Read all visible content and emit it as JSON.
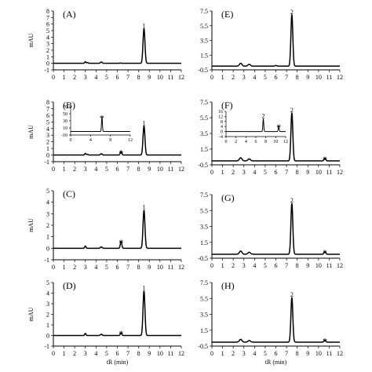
{
  "chart_data": [
    {
      "type": "line",
      "label": "(A)",
      "ylabel": "mAU",
      "xlabel": "",
      "xlim": [
        0,
        12
      ],
      "ylim": [
        -1,
        8
      ],
      "xticks": [
        0,
        1,
        2,
        3,
        4,
        5,
        6,
        7,
        8,
        9,
        10,
        11,
        12
      ],
      "yticks": [
        -1,
        0,
        1,
        2,
        3,
        4,
        5,
        6,
        7,
        8
      ],
      "baseline": 0.0,
      "peaks": [
        {
          "x": 3.0,
          "height": 0.25,
          "width": 0.06
        },
        {
          "x": 3.2,
          "height": 0.12,
          "width": 0.06
        },
        {
          "x": 4.5,
          "height": 0.2,
          "width": 0.08
        },
        {
          "x": 6.3,
          "height": 0.05,
          "width": 0.06
        },
        {
          "x": 8.5,
          "height": 5.3,
          "width": 0.09
        }
      ],
      "annotations": [
        {
          "text": "1",
          "x": 8.5,
          "y": 5.4
        }
      ]
    },
    {
      "type": "line",
      "label": "(B)",
      "ylabel": "mAU",
      "xlabel": "",
      "xlim": [
        0,
        12
      ],
      "ylim": [
        -1,
        8
      ],
      "xticks": [
        0,
        1,
        2,
        3,
        4,
        5,
        6,
        7,
        8,
        9,
        10,
        11,
        12
      ],
      "yticks": [
        -1,
        0,
        1,
        2,
        3,
        4,
        5,
        6,
        7,
        8
      ],
      "baseline": 0.0,
      "peaks": [
        {
          "x": 3.0,
          "height": 0.25,
          "width": 0.06
        },
        {
          "x": 3.2,
          "height": 0.12,
          "width": 0.06
        },
        {
          "x": 4.5,
          "height": 0.2,
          "width": 0.08
        },
        {
          "x": 6.35,
          "height": 0.55,
          "width": 0.07
        },
        {
          "x": 8.5,
          "height": 4.4,
          "width": 0.09
        }
      ],
      "annotations": [
        {
          "text": "1",
          "x": 8.5,
          "y": 4.5
        },
        {
          "text": "*",
          "x": 6.35,
          "y": 0.65
        }
      ],
      "inset": {
        "xlim": [
          0,
          12
        ],
        "ylim": [
          -10,
          70
        ],
        "xticks": [
          0,
          4,
          8,
          12
        ],
        "yticks": [
          -10,
          10,
          30,
          50,
          70
        ],
        "baseline": 0.0,
        "peaks": [
          {
            "x": 6.3,
            "height": 41,
            "width": 0.09
          }
        ],
        "annotations": [
          {
            "text": "*",
            "x": 6.3,
            "y": 44
          }
        ]
      }
    },
    {
      "type": "line",
      "label": "(C)",
      "ylabel": "mAU",
      "xlabel": "",
      "xlim": [
        0,
        12
      ],
      "ylim": [
        -1,
        5
      ],
      "xticks": [
        0,
        1,
        2,
        3,
        4,
        5,
        6,
        7,
        8,
        9,
        10,
        11,
        12
      ],
      "yticks": [
        -1,
        0,
        1,
        2,
        3,
        4,
        5
      ],
      "baseline": 0.0,
      "peaks": [
        {
          "x": 3.0,
          "height": 0.2,
          "width": 0.06
        },
        {
          "x": 4.5,
          "height": 0.12,
          "width": 0.08
        },
        {
          "x": 6.35,
          "height": 0.6,
          "width": 0.07
        },
        {
          "x": 8.5,
          "height": 3.3,
          "width": 0.09
        }
      ],
      "annotations": [
        {
          "text": "1",
          "x": 8.5,
          "y": 3.4
        },
        {
          "text": "*",
          "x": 6.35,
          "y": 0.7
        }
      ]
    },
    {
      "type": "line",
      "label": "(D)",
      "ylabel": "mAU",
      "xlabel": "tR (min)",
      "xlim": [
        0,
        12
      ],
      "ylim": [
        -1,
        5
      ],
      "xticks": [
        0,
        1,
        2,
        3,
        4,
        5,
        6,
        7,
        8,
        9,
        10,
        11,
        12
      ],
      "yticks": [
        -1,
        0,
        1,
        2,
        3,
        4,
        5
      ],
      "baseline": 0.0,
      "peaks": [
        {
          "x": 3.0,
          "height": 0.2,
          "width": 0.06
        },
        {
          "x": 4.5,
          "height": 0.12,
          "width": 0.08
        },
        {
          "x": 6.35,
          "height": 0.25,
          "width": 0.07
        },
        {
          "x": 8.5,
          "height": 4.2,
          "width": 0.09
        }
      ],
      "annotations": [
        {
          "text": "1",
          "x": 8.5,
          "y": 4.3
        },
        {
          "text": "*",
          "x": 6.35,
          "y": 0.4
        }
      ]
    },
    {
      "type": "line",
      "label": "(E)",
      "ylabel": "",
      "xlabel": "",
      "xlim": [
        0,
        12
      ],
      "ylim": [
        -0.5,
        7.5
      ],
      "xticks": [
        0,
        1,
        2,
        3,
        4,
        5,
        6,
        7,
        8,
        9,
        10,
        11,
        12
      ],
      "yticks": [
        -0.5,
        1.5,
        3.5,
        5.5,
        7.5
      ],
      "baseline": 0.0,
      "peaks": [
        {
          "x": 2.7,
          "height": 0.4,
          "width": 0.12
        },
        {
          "x": 3.5,
          "height": 0.25,
          "width": 0.12
        },
        {
          "x": 6.0,
          "height": 0.1,
          "width": 0.08
        },
        {
          "x": 7.5,
          "height": 7.0,
          "width": 0.09
        }
      ],
      "annotations": [
        {
          "text": "2",
          "x": 7.5,
          "y": 7.1
        }
      ]
    },
    {
      "type": "line",
      "label": "(F)",
      "ylabel": "",
      "xlabel": "",
      "xlim": [
        0,
        12
      ],
      "ylim": [
        -0.5,
        7.5
      ],
      "xticks": [
        0,
        1,
        2,
        3,
        4,
        5,
        6,
        7,
        8,
        9,
        10,
        11,
        12
      ],
      "yticks": [
        -0.5,
        1.5,
        3.5,
        5.5,
        7.5
      ],
      "baseline": 0.0,
      "peaks": [
        {
          "x": 2.7,
          "height": 0.4,
          "width": 0.12
        },
        {
          "x": 3.5,
          "height": 0.25,
          "width": 0.12
        },
        {
          "x": 7.5,
          "height": 6.1,
          "width": 0.09
        },
        {
          "x": 10.6,
          "height": 0.35,
          "width": 0.08
        }
      ],
      "annotations": [
        {
          "text": "2",
          "x": 7.5,
          "y": 6.2
        },
        {
          "text": "*",
          "x": 10.6,
          "y": 0.5
        }
      ],
      "inset": {
        "xlim": [
          0,
          12
        ],
        "ylim": [
          -4,
          16
        ],
        "xticks": [
          0,
          2,
          4,
          6,
          8,
          10,
          12
        ],
        "yticks": [
          -4,
          0,
          4,
          8,
          12,
          16
        ],
        "baseline": 0.0,
        "peaks": [
          {
            "x": 7.5,
            "height": 10.0,
            "width": 0.09
          },
          {
            "x": 10.6,
            "height": 4.5,
            "width": 0.09
          }
        ],
        "annotations": [
          {
            "text": "2",
            "x": 7.5,
            "y": 10.8
          },
          {
            "text": "*",
            "x": 10.6,
            "y": 5.5
          }
        ]
      }
    },
    {
      "type": "line",
      "label": "(G)",
      "ylabel": "",
      "xlabel": "",
      "xlim": [
        0,
        12
      ],
      "ylim": [
        -0.5,
        7.5
      ],
      "xticks": [
        0,
        1,
        2,
        3,
        4,
        5,
        6,
        7,
        8,
        9,
        10,
        11,
        12
      ],
      "yticks": [
        -0.5,
        1.5,
        3.5,
        5.5,
        7.5
      ],
      "baseline": 0.0,
      "peaks": [
        {
          "x": 2.7,
          "height": 0.4,
          "width": 0.12
        },
        {
          "x": 3.5,
          "height": 0.25,
          "width": 0.12
        },
        {
          "x": 7.5,
          "height": 6.4,
          "width": 0.09
        },
        {
          "x": 10.6,
          "height": 0.35,
          "width": 0.08
        }
      ],
      "annotations": [
        {
          "text": "2",
          "x": 7.5,
          "y": 6.5
        },
        {
          "text": "*",
          "x": 10.6,
          "y": 0.5
        }
      ]
    },
    {
      "type": "line",
      "label": "(H)",
      "ylabel": "",
      "xlabel": "tR (min)",
      "xlim": [
        0,
        12
      ],
      "ylim": [
        -0.5,
        7.5
      ],
      "xticks": [
        0,
        1,
        2,
        3,
        4,
        5,
        6,
        7,
        8,
        9,
        10,
        11,
        12
      ],
      "yticks": [
        -0.5,
        1.5,
        3.5,
        5.5,
        7.5
      ],
      "baseline": 0.0,
      "peaks": [
        {
          "x": 2.7,
          "height": 0.35,
          "width": 0.12
        },
        {
          "x": 3.5,
          "height": 0.2,
          "width": 0.12
        },
        {
          "x": 7.5,
          "height": 5.6,
          "width": 0.09
        },
        {
          "x": 10.6,
          "height": 0.25,
          "width": 0.08
        }
      ],
      "annotations": [
        {
          "text": "2",
          "x": 7.5,
          "y": 5.7
        },
        {
          "text": "*",
          "x": 10.6,
          "y": 0.45
        }
      ]
    }
  ]
}
